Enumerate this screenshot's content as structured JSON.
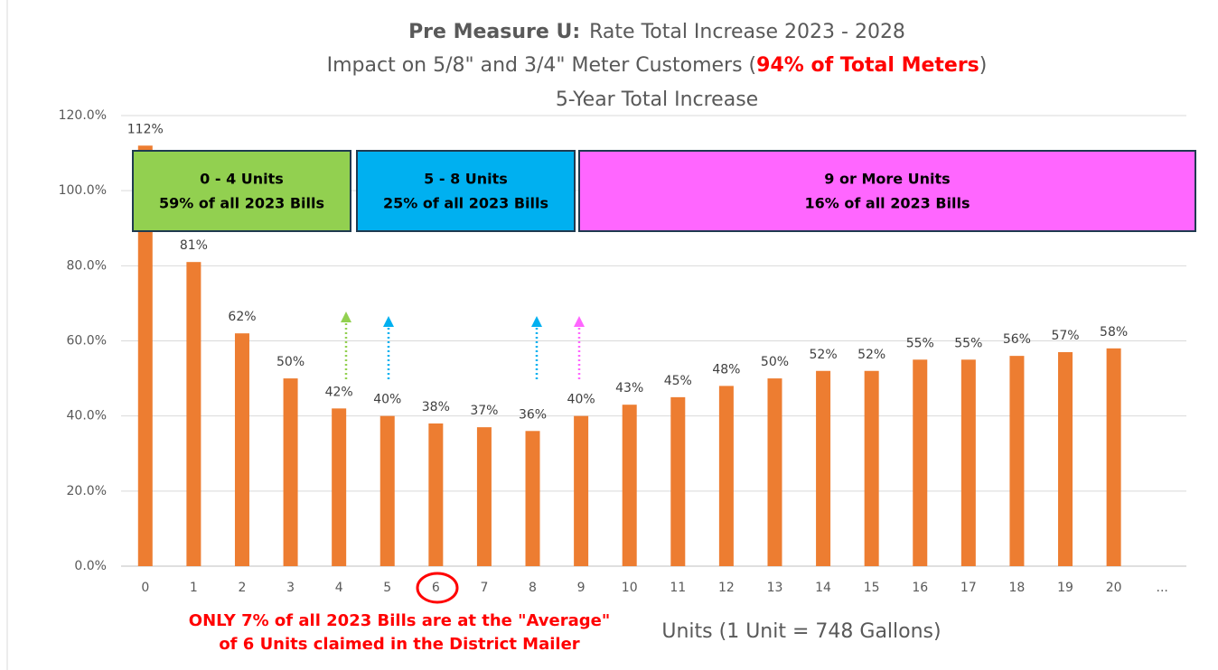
{
  "chart_data": {
    "type": "bar",
    "title": {
      "lead": "Pre Measure U:",
      "text": "Rate Total Increase 2023 - 2028"
    },
    "subtitle": {
      "before": "Impact on 5/8\" and 3/4\" Meter Customers (",
      "highlight": "94% of Total Meters",
      "after": ")"
    },
    "subtitle2": "5-Year Total Increase",
    "x_label": "Units (1 Unit = 748 Gallons)",
    "note": [
      "ONLY 7% of all 2023 Bills are at the \"Average\"",
      "of 6 Units claimed in the District Mailer"
    ],
    "groups": [
      {
        "name": "0 - 4 Units",
        "share": "59% of all 2023 Bills",
        "color": "#92d050"
      },
      {
        "name": "5 - 8 Units",
        "share": "25% of all 2023 Bills",
        "color": "#00b0f0"
      },
      {
        "name": "9 or More Units",
        "share": "16% of all 2023 Bills",
        "color": "#ff66ff"
      }
    ],
    "categories": [
      "0",
      "1",
      "2",
      "3",
      "4",
      "5",
      "6",
      "7",
      "8",
      "9",
      "10",
      "11",
      "12",
      "13",
      "14",
      "15",
      "16",
      "17",
      "18",
      "19",
      "20",
      "..."
    ],
    "values": [
      112,
      81,
      62,
      50,
      42,
      40,
      38,
      37,
      36,
      40,
      43,
      45,
      48,
      50,
      52,
      52,
      55,
      55,
      56,
      57,
      58,
      null
    ],
    "value_labels": [
      "112%",
      "81%",
      "62%",
      "50%",
      "42%",
      "40%",
      "38%",
      "37%",
      "36%",
      "40%",
      "43%",
      "45%",
      "48%",
      "50%",
      "52%",
      "52%",
      "55%",
      "55%",
      "56%",
      "57%",
      "58%",
      null
    ],
    "color": "#ed7d31",
    "ylim": [
      0,
      120
    ],
    "yticks": [
      {
        "value": 0,
        "label": "0.0%"
      },
      {
        "value": 20,
        "label": "20.0%"
      },
      {
        "value": 40,
        "label": "40.0%"
      },
      {
        "value": 60,
        "label": "60.0%"
      },
      {
        "value": 80,
        "label": "80.0%"
      },
      {
        "value": 100,
        "label": "100.0%"
      },
      {
        "value": 120,
        "label": "120.0%"
      }
    ],
    "grid": true
  }
}
